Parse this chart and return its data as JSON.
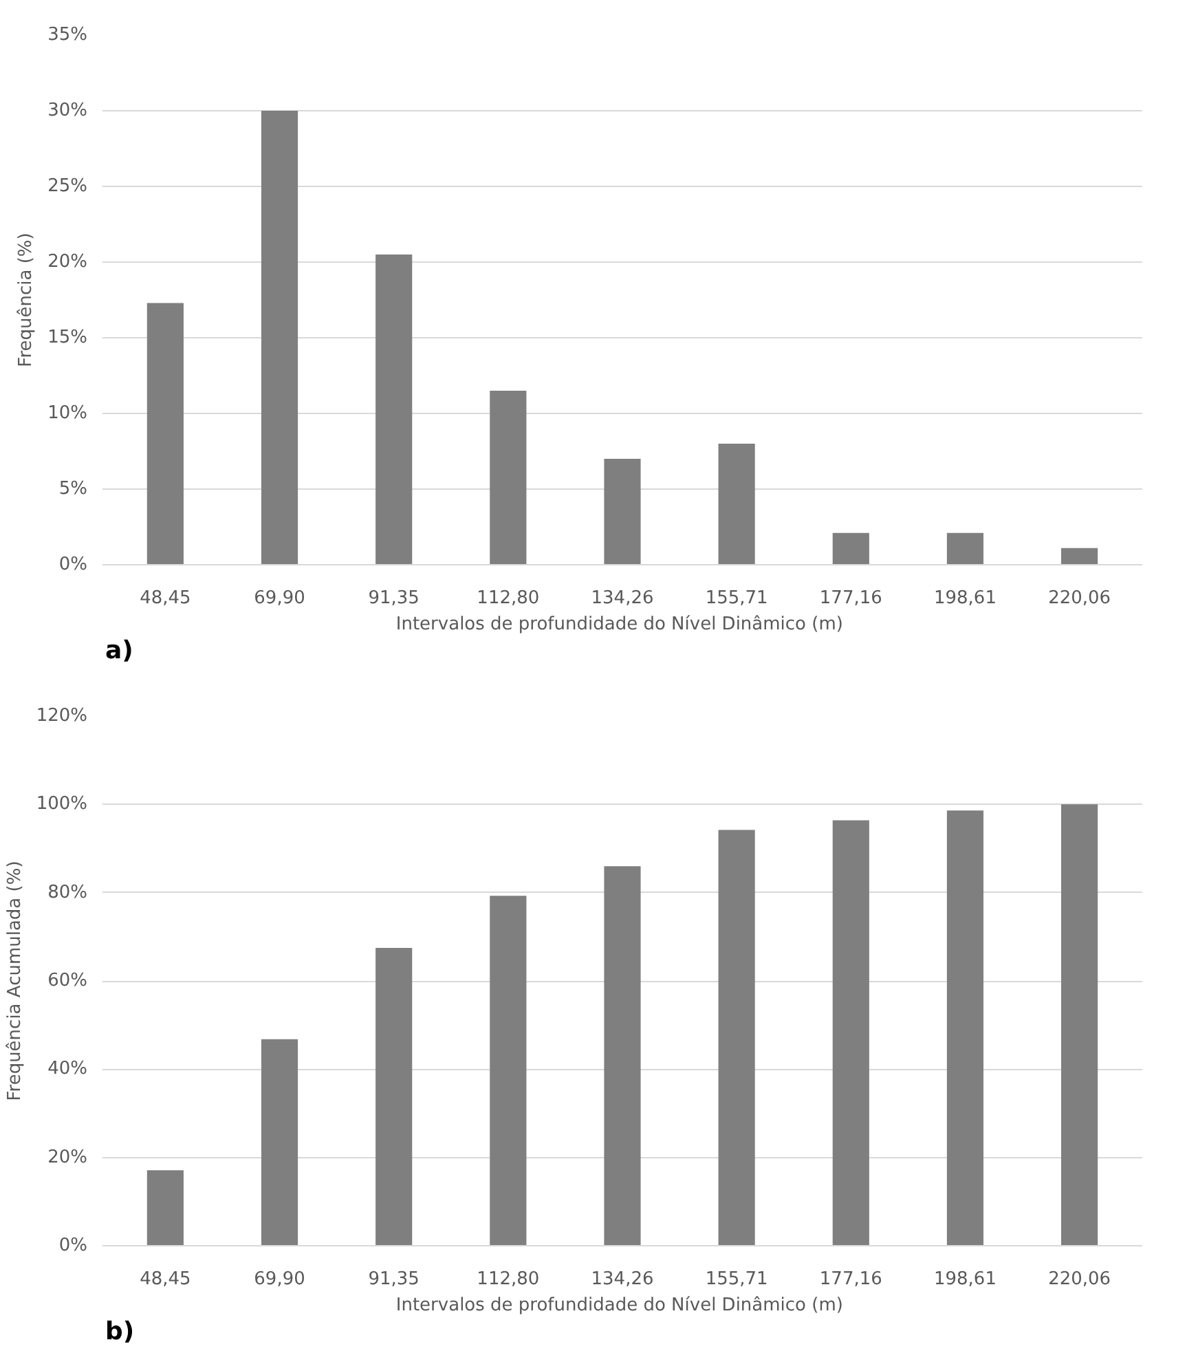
{
  "chart_data": [
    {
      "type": "bar",
      "xlabel": "Intervalos de profundidade do Nível  Dinâmico (m)",
      "ylabel": "Frequência (%)",
      "categories": [
        "48,45",
        "69,90",
        "91,35",
        "112,80",
        "134,26",
        "155,71",
        "177,16",
        "198,61",
        "220,06"
      ],
      "values": [
        17.3,
        30,
        20.5,
        11.5,
        7.0,
        8.0,
        2.1,
        2.1,
        1.1
      ],
      "color": "#7f7f7f",
      "ylim": [
        0,
        35
      ],
      "yticks": [
        {
          "value": 0,
          "label": "0%"
        },
        {
          "value": 5,
          "label": "5%"
        },
        {
          "value": 10,
          "label": "10%"
        },
        {
          "value": 15,
          "label": "15%"
        },
        {
          "value": 20,
          "label": "20%"
        },
        {
          "value": 25,
          "label": "25%"
        },
        {
          "value": 30,
          "label": "30%"
        },
        {
          "value": 35,
          "label": "35%"
        }
      ],
      "grid": "y",
      "annotations": [
        "a)"
      ]
    },
    {
      "type": "bar",
      "xlabel": "Intervalos de profundidade do Nível  Dinâmico (m)",
      "ylabel": "Frequência Acumulada (%)",
      "categories": [
        "48,45",
        "69,90",
        "91,35",
        "112,80",
        "134,26",
        "155,71",
        "177,16",
        "198,61",
        "220,06"
      ],
      "values": [
        17.1,
        46.8,
        67.5,
        79.3,
        86.0,
        94.2,
        96.4,
        98.6,
        100
      ],
      "color": "#7f7f7f",
      "ylim": [
        0,
        120
      ],
      "yticks": [
        {
          "value": 0,
          "label": "0%"
        },
        {
          "value": 20,
          "label": "20%"
        },
        {
          "value": 40,
          "label": "40%"
        },
        {
          "value": 60,
          "label": "60%"
        },
        {
          "value": 80,
          "label": "80%"
        },
        {
          "value": 100,
          "label": "100%"
        },
        {
          "value": 120,
          "label": "120%"
        }
      ],
      "grid": "y",
      "annotations": [
        "b)"
      ]
    }
  ]
}
